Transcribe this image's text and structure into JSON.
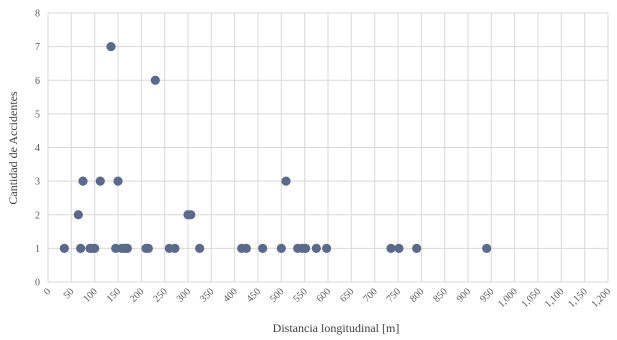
{
  "chart_data": {
    "type": "scatter",
    "title": "",
    "xlabel": "Distancia longitudinal  [m]",
    "ylabel": "Cantidad de Accidentes",
    "xlim": [
      0,
      1200
    ],
    "ylim": [
      0,
      8
    ],
    "x_ticks": [
      "0",
      "50",
      "100",
      "150",
      "200",
      "250",
      "300",
      "350",
      "400",
      "450",
      "500",
      "550",
      "600",
      "650",
      "700",
      "750",
      "800",
      "850",
      "900",
      "950",
      "1,000",
      "1,050",
      "1,100",
      "1,150",
      "1,200"
    ],
    "y_ticks": [
      "0",
      "1",
      "2",
      "3",
      "4",
      "5",
      "6",
      "7",
      "8"
    ],
    "grid": true,
    "legend": "none",
    "marker_color": "#5b6a8b",
    "points": [
      {
        "x": 35,
        "y": 1
      },
      {
        "x": 65,
        "y": 2
      },
      {
        "x": 70,
        "y": 1
      },
      {
        "x": 75,
        "y": 3
      },
      {
        "x": 90,
        "y": 1
      },
      {
        "x": 95,
        "y": 1
      },
      {
        "x": 100,
        "y": 1
      },
      {
        "x": 112,
        "y": 3
      },
      {
        "x": 135,
        "y": 7
      },
      {
        "x": 145,
        "y": 1
      },
      {
        "x": 150,
        "y": 3
      },
      {
        "x": 158,
        "y": 1
      },
      {
        "x": 163,
        "y": 1
      },
      {
        "x": 167,
        "y": 1
      },
      {
        "x": 170,
        "y": 1
      },
      {
        "x": 210,
        "y": 1
      },
      {
        "x": 215,
        "y": 1
      },
      {
        "x": 230,
        "y": 6
      },
      {
        "x": 260,
        "y": 1
      },
      {
        "x": 272,
        "y": 1
      },
      {
        "x": 300,
        "y": 2
      },
      {
        "x": 306,
        "y": 2
      },
      {
        "x": 325,
        "y": 1
      },
      {
        "x": 415,
        "y": 1
      },
      {
        "x": 425,
        "y": 1
      },
      {
        "x": 460,
        "y": 1
      },
      {
        "x": 500,
        "y": 1
      },
      {
        "x": 510,
        "y": 3
      },
      {
        "x": 535,
        "y": 1
      },
      {
        "x": 545,
        "y": 1
      },
      {
        "x": 552,
        "y": 1
      },
      {
        "x": 575,
        "y": 1
      },
      {
        "x": 597,
        "y": 1
      },
      {
        "x": 735,
        "y": 1
      },
      {
        "x": 752,
        "y": 1
      },
      {
        "x": 790,
        "y": 1
      },
      {
        "x": 940,
        "y": 1
      }
    ]
  }
}
